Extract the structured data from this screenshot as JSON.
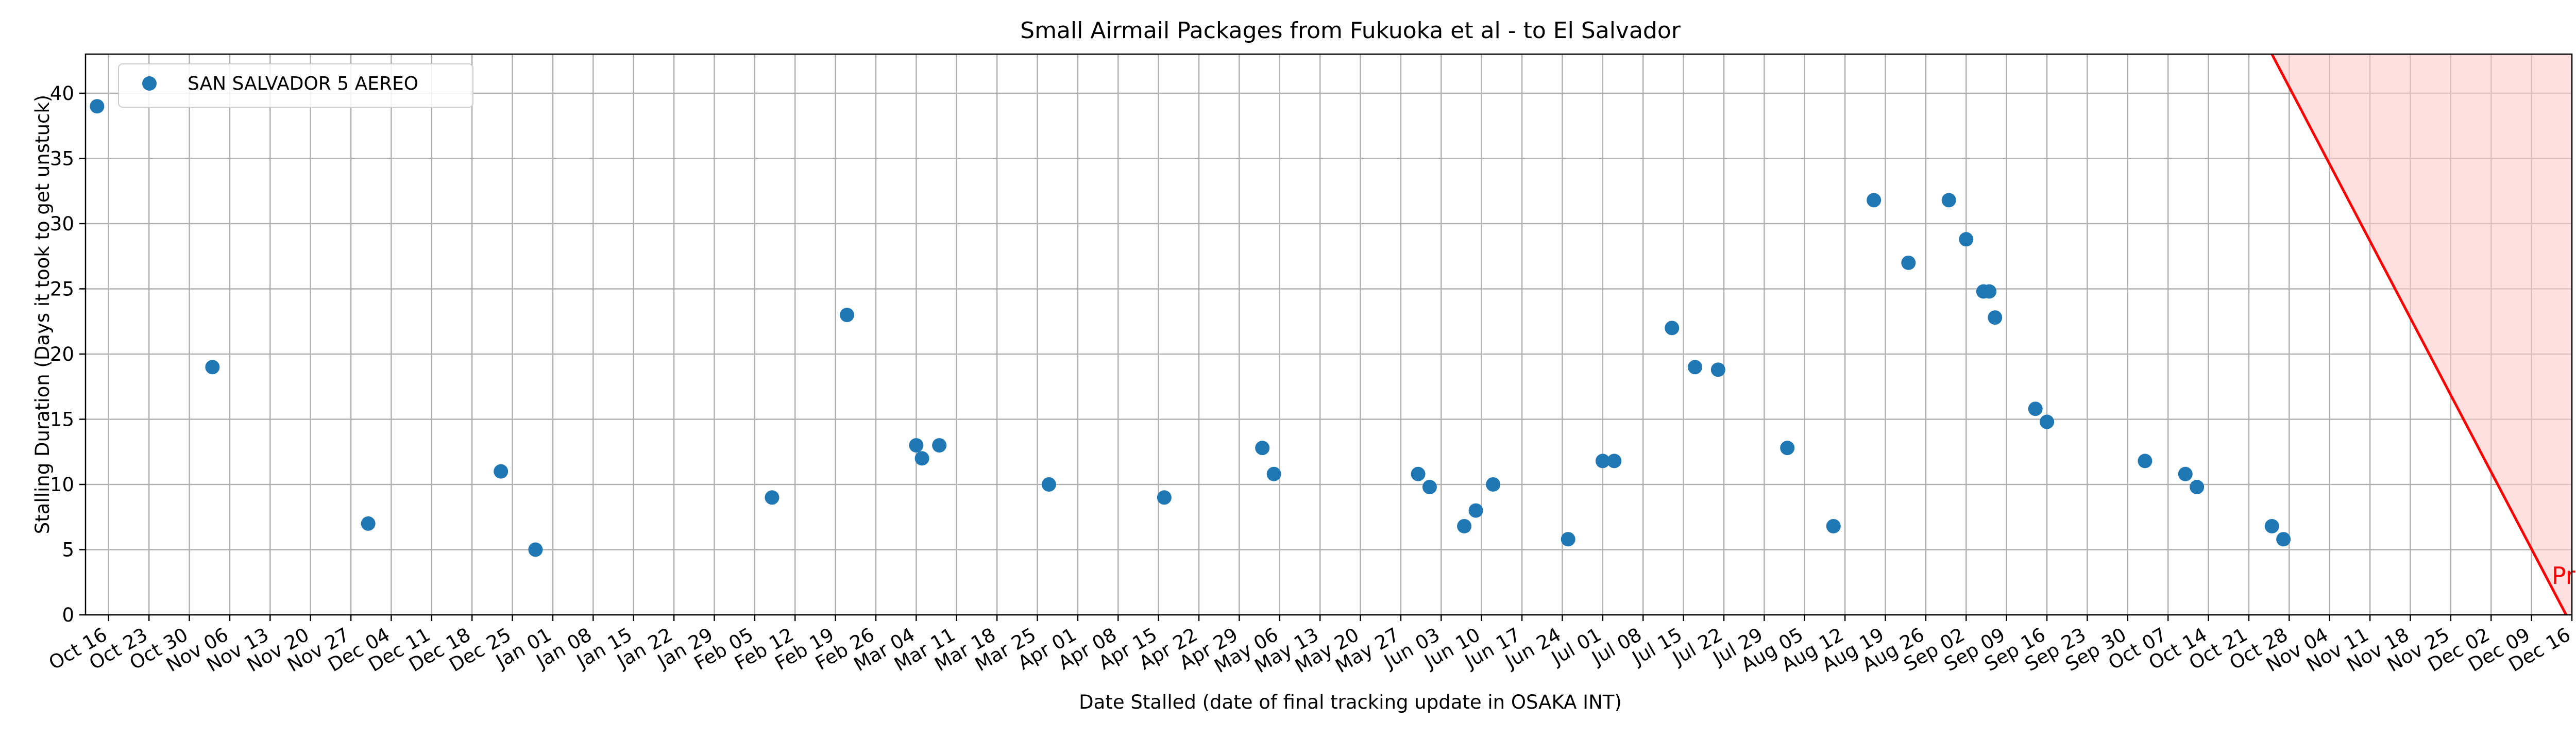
{
  "chart_data": {
    "type": "scatter",
    "title": "Small Airmail Packages from Fukuoka et al - to El Salvador",
    "xlabel": "Date Stalled (date of final tracking update in OSAKA INT)",
    "ylabel": "Stalling Duration (Days it took to get unstuck)",
    "xlim": [
      "2023-10-12",
      "2024-12-16"
    ],
    "ylim": [
      0,
      43
    ],
    "grid": true,
    "legend_position": "top-left",
    "x_ticks": [
      "2023-10-16",
      "2023-10-23",
      "2023-10-30",
      "2023-11-06",
      "2023-11-13",
      "2023-11-20",
      "2023-11-27",
      "2023-12-04",
      "2023-12-11",
      "2023-12-18",
      "2023-12-25",
      "2024-01-01",
      "2024-01-08",
      "2024-01-15",
      "2024-01-22",
      "2024-01-29",
      "2024-02-05",
      "2024-02-12",
      "2024-02-19",
      "2024-02-26",
      "2024-03-04",
      "2024-03-11",
      "2024-03-18",
      "2024-03-25",
      "2024-04-01",
      "2024-04-08",
      "2024-04-15",
      "2024-04-22",
      "2024-04-29",
      "2024-05-06",
      "2024-05-13",
      "2024-05-20",
      "2024-05-27",
      "2024-06-03",
      "2024-06-10",
      "2024-06-17",
      "2024-06-24",
      "2024-07-01",
      "2024-07-08",
      "2024-07-15",
      "2024-07-22",
      "2024-07-29",
      "2024-08-05",
      "2024-08-12",
      "2024-08-19",
      "2024-08-26",
      "2024-09-02",
      "2024-09-09",
      "2024-09-16",
      "2024-09-23",
      "2024-09-30",
      "2024-10-07",
      "2024-10-14",
      "2024-10-21",
      "2024-10-28",
      "2024-11-04",
      "2024-11-11",
      "2024-11-18",
      "2024-11-25",
      "2024-12-02",
      "2024-12-09",
      "2024-12-16"
    ],
    "x_tick_labels": [
      "Oct 16",
      "Oct 23",
      "Oct 30",
      "Nov 06",
      "Nov 13",
      "Nov 20",
      "Nov 27",
      "Dec 04",
      "Dec 11",
      "Dec 18",
      "Dec 25",
      "Jan 01",
      "Jan 08",
      "Jan 15",
      "Jan 22",
      "Jan 29",
      "Feb 05",
      "Feb 12",
      "Feb 19",
      "Feb 26",
      "Mar 04",
      "Mar 11",
      "Mar 18",
      "Mar 25",
      "Apr 01",
      "Apr 08",
      "Apr 15",
      "Apr 22",
      "Apr 29",
      "May 06",
      "May 13",
      "May 20",
      "May 27",
      "Jun 03",
      "Jun 10",
      "Jun 17",
      "Jun 24",
      "Jul 01",
      "Jul 08",
      "Jul 15",
      "Jul 22",
      "Jul 29",
      "Aug 05",
      "Aug 12",
      "Aug 19",
      "Aug 26",
      "Sep 02",
      "Sep 09",
      "Sep 16",
      "Sep 23",
      "Sep 30",
      "Oct 07",
      "Oct 14",
      "Oct 21",
      "Oct 28",
      "Nov 04",
      "Nov 11",
      "Nov 18",
      "Nov 25",
      "Dec 02",
      "Dec 09",
      "Dec 16"
    ],
    "y_ticks": [
      0,
      5,
      10,
      15,
      20,
      25,
      30,
      35,
      40
    ],
    "series": [
      {
        "name": "SAN SALVADOR 5 AEREO",
        "color": "#1f77b4",
        "points": [
          {
            "x": "2023-10-14",
            "y": 39
          },
          {
            "x": "2023-11-03",
            "y": 19
          },
          {
            "x": "2023-11-30",
            "y": 7
          },
          {
            "x": "2023-12-23",
            "y": 11
          },
          {
            "x": "2023-12-29",
            "y": 5
          },
          {
            "x": "2024-02-08",
            "y": 9
          },
          {
            "x": "2024-02-21",
            "y": 23
          },
          {
            "x": "2024-03-04",
            "y": 13
          },
          {
            "x": "2024-03-05",
            "y": 12
          },
          {
            "x": "2024-03-08",
            "y": 13
          },
          {
            "x": "2024-03-27",
            "y": 10
          },
          {
            "x": "2024-04-16",
            "y": 9
          },
          {
            "x": "2024-05-03",
            "y": 12.8
          },
          {
            "x": "2024-05-05",
            "y": 10.8
          },
          {
            "x": "2024-05-30",
            "y": 10.8
          },
          {
            "x": "2024-06-01",
            "y": 9.8
          },
          {
            "x": "2024-06-07",
            "y": 6.8
          },
          {
            "x": "2024-06-09",
            "y": 8
          },
          {
            "x": "2024-06-12",
            "y": 10
          },
          {
            "x": "2024-06-25",
            "y": 5.8
          },
          {
            "x": "2024-07-01",
            "y": 11.8
          },
          {
            "x": "2024-07-03",
            "y": 11.8
          },
          {
            "x": "2024-07-13",
            "y": 22
          },
          {
            "x": "2024-07-17",
            "y": 19
          },
          {
            "x": "2024-07-21",
            "y": 18.8
          },
          {
            "x": "2024-08-02",
            "y": 12.8
          },
          {
            "x": "2024-08-10",
            "y": 6.8
          },
          {
            "x": "2024-08-17",
            "y": 31.8
          },
          {
            "x": "2024-08-23",
            "y": 27
          },
          {
            "x": "2024-08-30",
            "y": 31.8
          },
          {
            "x": "2024-09-02",
            "y": 28.8
          },
          {
            "x": "2024-09-05",
            "y": 24.8
          },
          {
            "x": "2024-09-06",
            "y": 24.8
          },
          {
            "x": "2024-09-07",
            "y": 22.8
          },
          {
            "x": "2024-09-14",
            "y": 15.8
          },
          {
            "x": "2024-09-16",
            "y": 14.8
          },
          {
            "x": "2024-10-03",
            "y": 11.8
          },
          {
            "x": "2024-10-10",
            "y": 10.8
          },
          {
            "x": "2024-10-12",
            "y": 9.8
          },
          {
            "x": "2024-10-25",
            "y": 6.8
          },
          {
            "x": "2024-10-27",
            "y": 5.8
          }
        ]
      }
    ],
    "present_line": {
      "color": "#ff0000",
      "fill_color": "#ffcccc",
      "label": "Present",
      "start": {
        "x": "2024-10-25",
        "y": 43
      },
      "end": {
        "x": "2024-12-15",
        "y": 0
      }
    }
  }
}
